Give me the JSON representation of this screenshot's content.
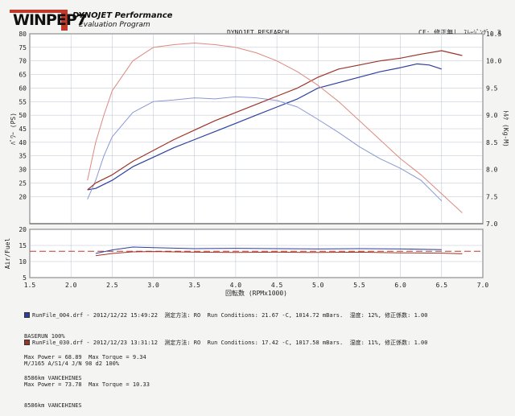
{
  "header": {
    "logo_text": "WINPEP7",
    "product_line1": "DYNOJET Performance",
    "product_line2": "Evaluation Program",
    "title": "DYNOJET RESEARCH",
    "cf_info": "CF: 修正無し  ｽﾑｰｼﾞﾝｸﾞ: 3"
  },
  "chart_data": {
    "type": "line",
    "x_axis": {
      "label": "回転数 (RPMx1000)",
      "min": 1.5,
      "max": 7.0,
      "ticks": [
        "1.5",
        "2.0",
        "2.5",
        "3.0",
        "3.5",
        "4.0",
        "4.5",
        "5.0",
        "5.5",
        "6.0",
        "6.5",
        "7.0"
      ]
    },
    "power_axis": {
      "label": "ﾊﾟﾜｰ (PS)",
      "min": 10,
      "max": 80,
      "ticks": [
        20,
        25,
        30,
        35,
        40,
        45,
        50,
        55,
        60,
        65,
        70,
        75,
        80
      ]
    },
    "torque_axis": {
      "label": "ﾄﾙｸ (Kg-M)",
      "min": 7.0,
      "max": 10.5,
      "ticks": [
        "7.0",
        "7.5",
        "8.0",
        "8.5",
        "9.0",
        "9.5",
        "10.0",
        "10.5"
      ]
    },
    "af_axis": {
      "label": "Air/Fuel",
      "min": 5,
      "max": 20,
      "ticks": [
        5,
        10,
        15,
        20
      ],
      "reference": 13.2
    },
    "colors": {
      "run1": "#2d3f9e",
      "run2": "#9b3528",
      "run1_light": "#8a98d2",
      "run2_light": "#dc8a80",
      "reference": "#c0392b"
    },
    "series": [
      {
        "name": "RunFile_004.drf",
        "kind": "power",
        "rpm": [
          2.2,
          2.3,
          2.5,
          2.75,
          3.0,
          3.25,
          3.5,
          3.75,
          4.0,
          4.25,
          4.5,
          4.75,
          5.0,
          5.25,
          5.5,
          5.75,
          6.0,
          6.2,
          6.35,
          6.5
        ],
        "values": [
          22.5,
          23,
          26,
          31,
          34.5,
          38,
          41,
          44,
          47,
          50,
          53,
          56,
          60,
          62,
          64,
          66,
          67.5,
          68.9,
          68.5,
          67
        ]
      },
      {
        "name": "RunFile_004.drf",
        "kind": "torque",
        "rpm": [
          2.2,
          2.3,
          2.4,
          2.5,
          2.75,
          3.0,
          3.25,
          3.5,
          3.75,
          4.0,
          4.25,
          4.5,
          4.75,
          5.0,
          5.25,
          5.5,
          5.75,
          6.0,
          6.25,
          6.5
        ],
        "values": [
          7.45,
          7.8,
          8.25,
          8.6,
          9.05,
          9.25,
          9.28,
          9.32,
          9.3,
          9.34,
          9.32,
          9.27,
          9.15,
          8.92,
          8.68,
          8.42,
          8.2,
          8.02,
          7.8,
          7.42
        ]
      },
      {
        "name": "RunFile_030.drf",
        "kind": "power",
        "rpm": [
          2.2,
          2.3,
          2.5,
          2.75,
          3.0,
          3.25,
          3.5,
          3.75,
          4.0,
          4.25,
          4.5,
          4.75,
          5.0,
          5.25,
          5.5,
          5.75,
          6.0,
          6.25,
          6.5,
          6.75
        ],
        "values": [
          22.5,
          25,
          28,
          33,
          37,
          41,
          44.5,
          48,
          51,
          54,
          57,
          60,
          64,
          67,
          68.5,
          70,
          71,
          72.5,
          73.78,
          72
        ]
      },
      {
        "name": "RunFile_030.drf",
        "kind": "torque",
        "rpm": [
          2.2,
          2.3,
          2.4,
          2.5,
          2.75,
          3.0,
          3.25,
          3.5,
          3.75,
          4.0,
          4.25,
          4.5,
          4.75,
          5.0,
          5.25,
          5.5,
          5.75,
          6.0,
          6.25,
          6.5,
          6.75
        ],
        "values": [
          7.8,
          8.5,
          9.0,
          9.45,
          10.0,
          10.25,
          10.3,
          10.33,
          10.3,
          10.25,
          10.15,
          10.0,
          9.8,
          9.55,
          9.25,
          8.9,
          8.55,
          8.2,
          7.9,
          7.55,
          7.2
        ]
      },
      {
        "name": "RunFile_004.drf",
        "kind": "airfuel",
        "rpm": [
          2.3,
          2.5,
          2.75,
          3.0,
          3.5,
          4.0,
          4.5,
          5.0,
          5.5,
          6.0,
          6.5
        ],
        "values": [
          12.5,
          13.6,
          14.5,
          14.3,
          14.0,
          14.1,
          14.0,
          13.9,
          14.0,
          13.9,
          13.7
        ]
      },
      {
        "name": "RunFile_030.drf",
        "kind": "airfuel",
        "rpm": [
          2.3,
          2.5,
          2.75,
          3.0,
          3.5,
          4.0,
          4.5,
          5.0,
          5.5,
          6.0,
          6.5,
          6.75
        ],
        "values": [
          11.8,
          12.5,
          13.0,
          13.1,
          12.9,
          12.8,
          12.9,
          12.8,
          12.9,
          12.7,
          12.6,
          12.4
        ]
      }
    ]
  },
  "legend": [
    {
      "line1": "RunFile_004.drf - 2012/12/22 15:49:22  測定方法: RO  Run Conditions: 21.67 -C, 1014.72 mBars.  湿度: 12%, 修正係数: 1.00",
      "line2": "BASERUN 100%",
      "line3": "Max Power = 68.89  Max Torque = 9.34",
      "line4": "8586km VANCEHINES"
    },
    {
      "line1": "RunFile_030.drf - 2012/12/23 13:31:12  測定方法: RO  Run Conditions: 17.42 -C, 1017.58 mBars.  湿度: 11%, 修正係数: 1.00",
      "line2": "M/J165 A/S1/4 J/N 98 d2 100%",
      "line3": "Max Power = 73.78  Max Torque = 10.33",
      "line4": "8586km VANCEHINES"
    }
  ]
}
